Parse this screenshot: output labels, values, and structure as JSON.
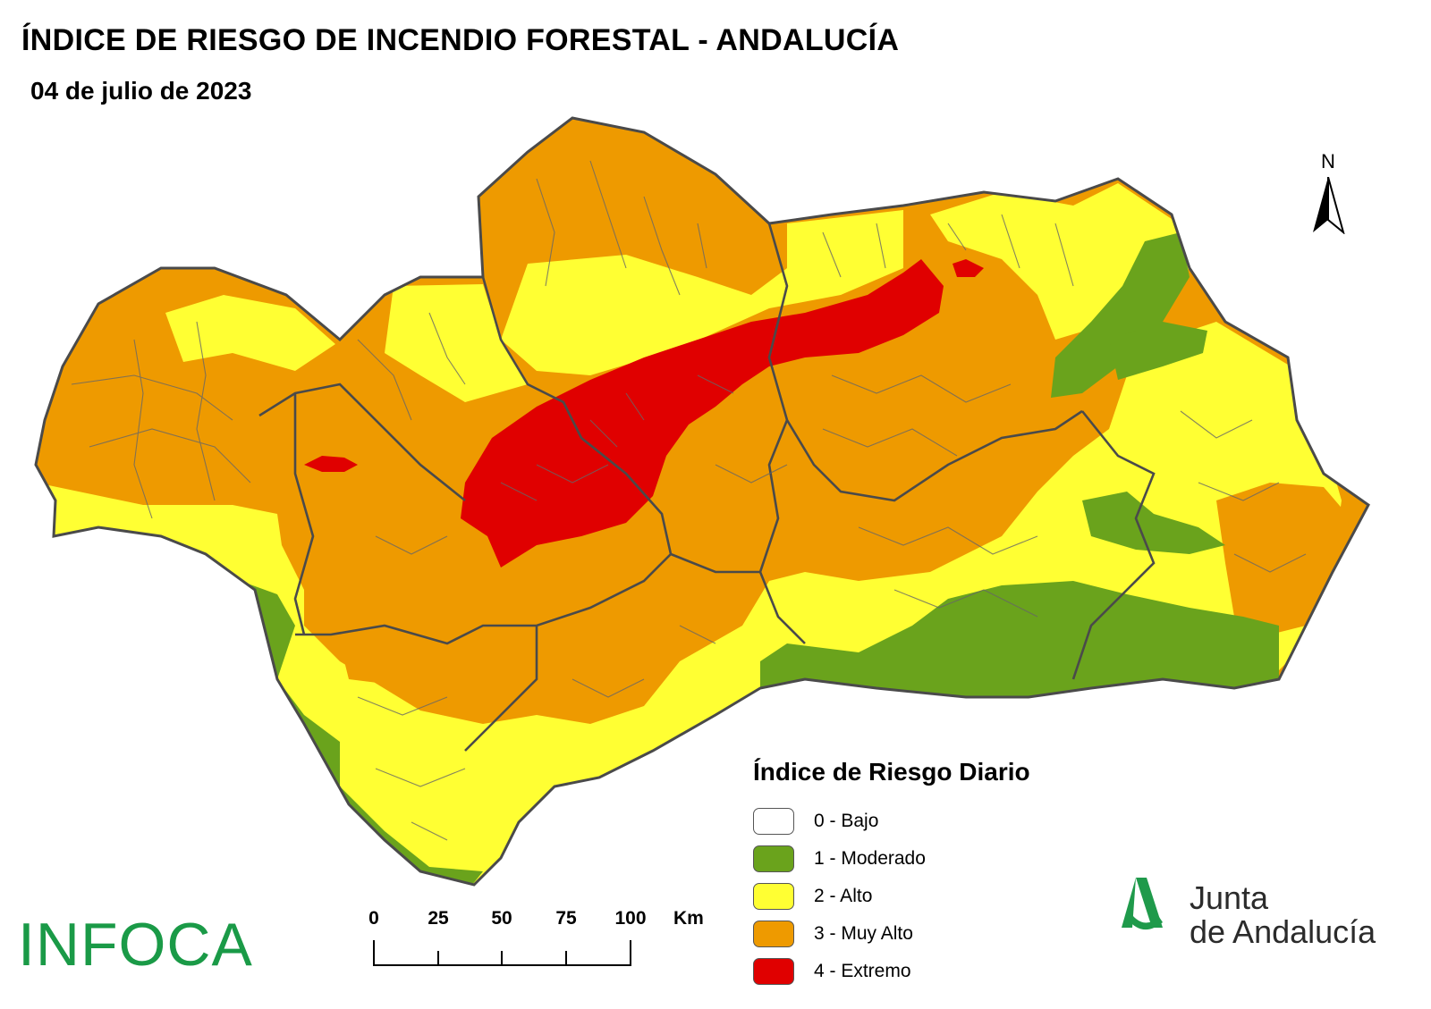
{
  "title": "ÍNDICE DE RIESGO DE INCENDIO FORESTAL - ANDALUCÍA",
  "date": "04 de julio de 2023",
  "north_arrow": {
    "label": "N"
  },
  "legend": {
    "title": "Índice de Riesgo Diario",
    "items": [
      {
        "label": "0 - Bajo",
        "color": "#ffffff"
      },
      {
        "label": "1 - Moderado",
        "color": "#6aa31c"
      },
      {
        "label": "2 - Alto",
        "color": "#ffff33"
      },
      {
        "label": "3 - Muy Alto",
        "color": "#ee9a00"
      },
      {
        "label": "4 - Extremo",
        "color": "#e00000"
      }
    ]
  },
  "scale_bar": {
    "ticks": [
      "0",
      "25",
      "50",
      "75",
      "100"
    ],
    "unit": "Km"
  },
  "branding": {
    "infoca": "INFOCA",
    "junta_line1": "Junta",
    "junta_line2": "de Andalucía"
  },
  "map_colors": {
    "border": "#555555",
    "low": "#ffffff",
    "moderate": "#6aa31c",
    "high": "#ffff33",
    "very_high": "#ee9a00",
    "extreme": "#e00000"
  }
}
